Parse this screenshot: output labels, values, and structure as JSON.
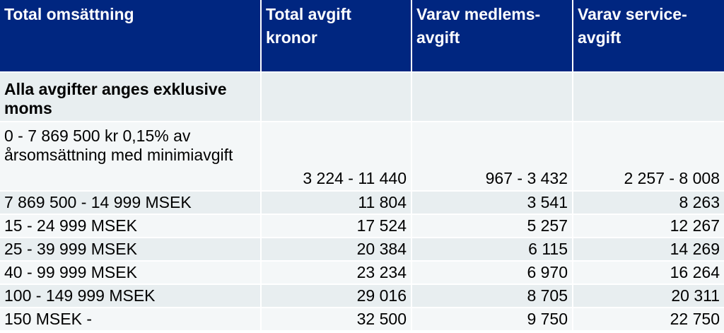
{
  "header": {
    "col1": "Total omsättning",
    "col2": "Total avgift kronor",
    "col3": "Varav medlems-avgift",
    "col4": "Varav service-avgift"
  },
  "note": "Alla avgifter anges exklusive moms",
  "rows": [
    {
      "range": "0 - 7 869 500 kr 0,15% av årsomsättning med minimiavgift",
      "total": "3 224 - 11 440",
      "member": "967 - 3 432",
      "service": "2 257 - 8 008"
    },
    {
      "range": "7 869 500 - 14 999 MSEK",
      "total": "11 804",
      "member": "3 541",
      "service": "8 263"
    },
    {
      "range": "15 - 24 999 MSEK",
      "total": "17 524",
      "member": "5 257",
      "service": "12 267"
    },
    {
      "range": "25 - 39 999 MSEK",
      "total": "20 384",
      "member": "6 115",
      "service": "14 269"
    },
    {
      "range": "40 - 99 999 MSEK",
      "total": "23 234",
      "member": "6 970",
      "service": "16 264"
    },
    {
      "range": "100 - 149 999 MSEK",
      "total": "29 016",
      "member": "8 705",
      "service": "20 311"
    },
    {
      "range": "150 MSEK -",
      "total": "32 500",
      "member": "9 750",
      "service": "22 750"
    }
  ],
  "colors": {
    "header_bg": "#002680",
    "row_light": "#f4f7f8",
    "row_dark": "#e8eef0"
  }
}
